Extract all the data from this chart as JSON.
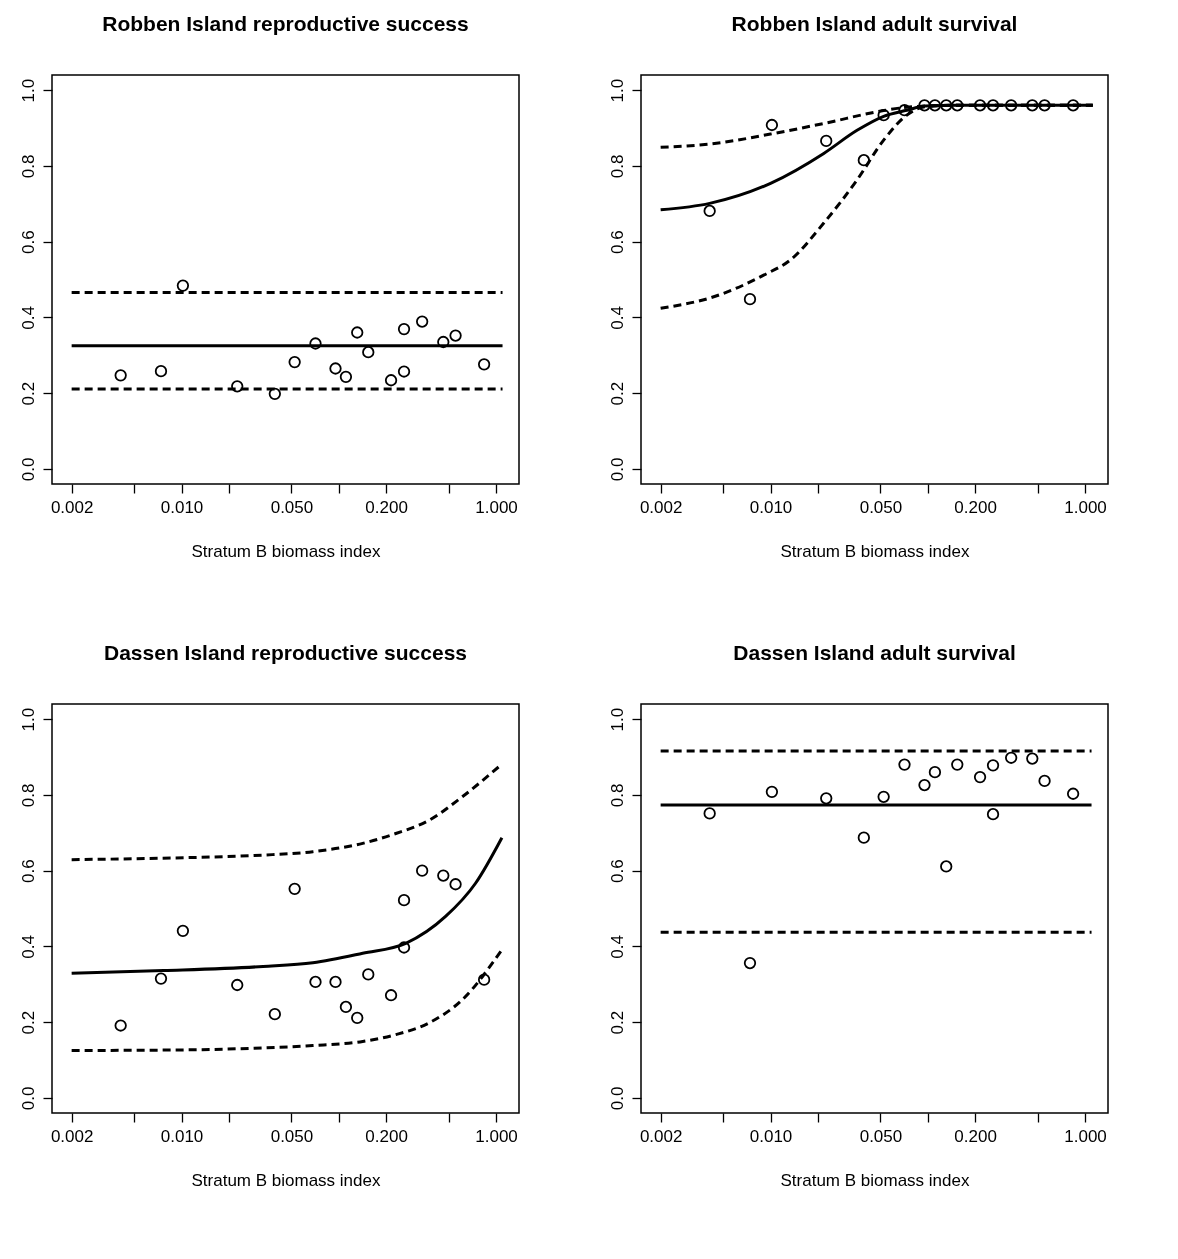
{
  "chart_data": [
    {
      "type": "scatter",
      "title": "Robben Island reproductive success",
      "xlabel": "Stratum B biomass index",
      "log": "x",
      "xlim": [
        0.0015,
        1.4
      ],
      "ylim": [
        -0.04,
        1.04
      ],
      "xticks": [
        {
          "value": 0.002,
          "label": "0.002"
        },
        {
          "value": 0.005,
          "label": null
        },
        {
          "value": 0.01,
          "label": "0.010"
        },
        {
          "value": 0.02,
          "label": null
        },
        {
          "value": 0.05,
          "label": "0.050"
        },
        {
          "value": 0.1,
          "label": null
        },
        {
          "value": 0.2,
          "label": "0.200"
        },
        {
          "value": 0.5,
          "label": null
        },
        {
          "value": 1,
          "label": "1.000"
        }
      ],
      "yticks": [
        {
          "value": 0,
          "label": "0.0"
        },
        {
          "value": 0.2,
          "label": "0.2"
        },
        {
          "value": 0.4,
          "label": "0.4"
        },
        {
          "value": 0.6,
          "label": "0.6"
        },
        {
          "value": 0.8,
          "label": "0.8"
        },
        {
          "value": 1,
          "label": "1.0"
        }
      ],
      "series": [
        {
          "type": "scatter",
          "marker": "circle",
          "color": "#000000",
          "x": [
            0.0041,
            0.0074,
            0.0102,
            0.0226,
            0.0392,
            0.0524,
            0.0711,
            0.0953,
            0.111,
            0.131,
            0.154,
            0.215,
            0.26,
            0.26,
            0.339,
            0.462,
            0.553,
            0.84
          ],
          "values": [
            0.247,
            0.258,
            0.484,
            0.218,
            0.198,
            0.282,
            0.331,
            0.265,
            0.243,
            0.36,
            0.308,
            0.234,
            0.257,
            0.369,
            0.389,
            0.335,
            0.352,
            0.276
          ]
        },
        {
          "type": "line",
          "line_style": "solid",
          "color": "#000000",
          "x": [
            0.002,
            1.1
          ],
          "values": [
            0.325,
            0.325
          ]
        },
        {
          "type": "line",
          "line_style": "dashed",
          "color": "#000000",
          "x": [
            0.002,
            1.1
          ],
          "values": [
            0.466,
            0.466
          ]
        },
        {
          "type": "line",
          "line_style": "dashed",
          "color": "#000000",
          "x": [
            0.002,
            1.1
          ],
          "values": [
            0.211,
            0.211
          ]
        }
      ]
    },
    {
      "type": "scatter",
      "title": "Robben Island adult survival",
      "xlabel": "Stratum B biomass index",
      "log": "x",
      "xlim": [
        0.0015,
        1.4
      ],
      "ylim": [
        -0.04,
        1.04
      ],
      "xticks": [
        {
          "value": 0.002,
          "label": "0.002"
        },
        {
          "value": 0.005,
          "label": null
        },
        {
          "value": 0.01,
          "label": "0.010"
        },
        {
          "value": 0.02,
          "label": null
        },
        {
          "value": 0.05,
          "label": "0.050"
        },
        {
          "value": 0.1,
          "label": null
        },
        {
          "value": 0.2,
          "label": "0.200"
        },
        {
          "value": 0.5,
          "label": null
        },
        {
          "value": 1,
          "label": "1.000"
        }
      ],
      "yticks": [
        {
          "value": 0,
          "label": "0.0"
        },
        {
          "value": 0.2,
          "label": "0.2"
        },
        {
          "value": 0.4,
          "label": "0.4"
        },
        {
          "value": 0.6,
          "label": "0.6"
        },
        {
          "value": 0.8,
          "label": "0.8"
        },
        {
          "value": 1,
          "label": "1.0"
        }
      ],
      "series": [
        {
          "type": "scatter",
          "marker": "circle",
          "color": "#000000",
          "x": [
            0.0041,
            0.0074,
            0.0102,
            0.0226,
            0.0392,
            0.0524,
            0.0711,
            0.0953,
            0.111,
            0.131,
            0.154,
            0.215,
            0.26,
            0.339,
            0.462,
            0.553,
            0.84
          ],
          "values": [
            0.681,
            0.448,
            0.908,
            0.866,
            0.815,
            0.934,
            0.947,
            0.96,
            0.96,
            0.96,
            0.96,
            0.96,
            0.96,
            0.96,
            0.96,
            0.96,
            0.96
          ]
        },
        {
          "type": "line",
          "line_style": "solid",
          "color": "#000000",
          "x": [
            0.002,
            0.0041,
            0.01,
            0.0218,
            0.0355,
            0.0524,
            0.0736,
            0.0962,
            0.1525,
            1.12
          ],
          "values": [
            0.684,
            0.701,
            0.754,
            0.833,
            0.894,
            0.931,
            0.947,
            0.958,
            0.96,
            0.96
          ]
        },
        {
          "type": "line",
          "line_style": "dashed",
          "color": "#000000",
          "x": [
            0.002,
            0.0044,
            0.01,
            0.0218,
            0.0524,
            0.0736,
            0.0962,
            0.1525,
            1.12
          ],
          "values": [
            0.849,
            0.859,
            0.884,
            0.912,
            0.946,
            0.955,
            0.958,
            0.96,
            0.96
          ]
        },
        {
          "type": "line",
          "line_style": "dashed",
          "color": "#000000",
          "x": [
            0.002,
            0.0044,
            0.0091,
            0.0134,
            0.0218,
            0.0355,
            0.0524,
            0.0736,
            0.0962,
            0.1525,
            1.12
          ],
          "values": [
            0.424,
            0.455,
            0.512,
            0.552,
            0.649,
            0.763,
            0.868,
            0.934,
            0.956,
            0.96,
            0.96
          ]
        }
      ]
    },
    {
      "type": "scatter",
      "title": "Dassen Island reproductive success",
      "xlabel": "Stratum B biomass index",
      "log": "x",
      "xlim": [
        0.0015,
        1.4
      ],
      "ylim": [
        -0.04,
        1.04
      ],
      "xticks": [
        {
          "value": 0.002,
          "label": "0.002"
        },
        {
          "value": 0.005,
          "label": null
        },
        {
          "value": 0.01,
          "label": "0.010"
        },
        {
          "value": 0.02,
          "label": null
        },
        {
          "value": 0.05,
          "label": "0.050"
        },
        {
          "value": 0.1,
          "label": null
        },
        {
          "value": 0.2,
          "label": "0.200"
        },
        {
          "value": 0.5,
          "label": null
        },
        {
          "value": 1,
          "label": "1.000"
        }
      ],
      "yticks": [
        {
          "value": 0,
          "label": "0.0"
        },
        {
          "value": 0.2,
          "label": "0.2"
        },
        {
          "value": 0.4,
          "label": "0.4"
        },
        {
          "value": 0.6,
          "label": "0.6"
        },
        {
          "value": 0.8,
          "label": "0.8"
        },
        {
          "value": 1,
          "label": "1.0"
        }
      ],
      "series": [
        {
          "type": "scatter",
          "marker": "circle",
          "color": "#000000",
          "x": [
            0.0041,
            0.0074,
            0.0102,
            0.0226,
            0.0392,
            0.0524,
            0.0711,
            0.0953,
            0.111,
            0.131,
            0.154,
            0.215,
            0.26,
            0.26,
            0.339,
            0.462,
            0.553,
            0.84
          ],
          "values": [
            0.191,
            0.315,
            0.441,
            0.298,
            0.221,
            0.552,
            0.306,
            0.306,
            0.24,
            0.211,
            0.326,
            0.271,
            0.397,
            0.522,
            0.6,
            0.587,
            0.564,
            0.312
          ]
        },
        {
          "type": "line",
          "line_style": "solid",
          "color": "#000000",
          "x": [
            0.002,
            0.0077,
            0.033,
            0.0684,
            0.1419,
            0.2668,
            0.4777,
            0.739,
            1.09
          ],
          "values": [
            0.329,
            0.336,
            0.347,
            0.357,
            0.382,
            0.408,
            0.479,
            0.566,
            0.687
          ]
        },
        {
          "type": "line",
          "line_style": "dashed",
          "color": "#000000",
          "x": [
            0.002,
            0.0125,
            0.033,
            0.0684,
            0.1419,
            0.2306,
            0.375,
            0.61,
            1.04
          ],
          "values": [
            0.629,
            0.635,
            0.641,
            0.65,
            0.672,
            0.698,
            0.733,
            0.795,
            0.874
          ]
        },
        {
          "type": "line",
          "line_style": "dashed",
          "color": "#000000",
          "x": [
            0.002,
            0.0125,
            0.033,
            0.0684,
            0.1419,
            0.2306,
            0.375,
            0.61,
            1.09
          ],
          "values": [
            0.125,
            0.127,
            0.132,
            0.138,
            0.149,
            0.167,
            0.198,
            0.259,
            0.391
          ]
        }
      ]
    },
    {
      "type": "scatter",
      "title": "Dassen Island adult survival",
      "xlabel": "Stratum B biomass index",
      "log": "x",
      "xlim": [
        0.0015,
        1.4
      ],
      "ylim": [
        -0.04,
        1.04
      ],
      "xticks": [
        {
          "value": 0.002,
          "label": "0.002"
        },
        {
          "value": 0.005,
          "label": null
        },
        {
          "value": 0.01,
          "label": "0.010"
        },
        {
          "value": 0.02,
          "label": null
        },
        {
          "value": 0.05,
          "label": "0.050"
        },
        {
          "value": 0.1,
          "label": null
        },
        {
          "value": 0.2,
          "label": "0.200"
        },
        {
          "value": 0.5,
          "label": null
        },
        {
          "value": 1,
          "label": "1.000"
        }
      ],
      "yticks": [
        {
          "value": 0,
          "label": "0.0"
        },
        {
          "value": 0.2,
          "label": "0.2"
        },
        {
          "value": 0.4,
          "label": "0.4"
        },
        {
          "value": 0.6,
          "label": "0.6"
        },
        {
          "value": 0.8,
          "label": "0.8"
        },
        {
          "value": 1,
          "label": "1.0"
        }
      ],
      "series": [
        {
          "type": "scatter",
          "marker": "circle",
          "color": "#000000",
          "x": [
            0.0041,
            0.0074,
            0.0102,
            0.0226,
            0.0392,
            0.0524,
            0.0711,
            0.0953,
            0.111,
            0.131,
            0.154,
            0.215,
            0.26,
            0.26,
            0.339,
            0.462,
            0.553,
            0.84
          ],
          "values": [
            0.751,
            0.356,
            0.808,
            0.791,
            0.687,
            0.795,
            0.88,
            0.826,
            0.86,
            0.611,
            0.88,
            0.847,
            0.878,
            0.749,
            0.898,
            0.896,
            0.837,
            0.803
          ]
        },
        {
          "type": "line",
          "line_style": "solid",
          "color": "#000000",
          "x": [
            0.002,
            1.1
          ],
          "values": [
            0.773,
            0.773
          ]
        },
        {
          "type": "line",
          "line_style": "dashed",
          "color": "#000000",
          "x": [
            0.002,
            1.1
          ],
          "values": [
            0.916,
            0.916
          ]
        },
        {
          "type": "line",
          "line_style": "dashed",
          "color": "#000000",
          "x": [
            0.002,
            1.1
          ],
          "values": [
            0.437,
            0.437
          ]
        }
      ]
    }
  ]
}
